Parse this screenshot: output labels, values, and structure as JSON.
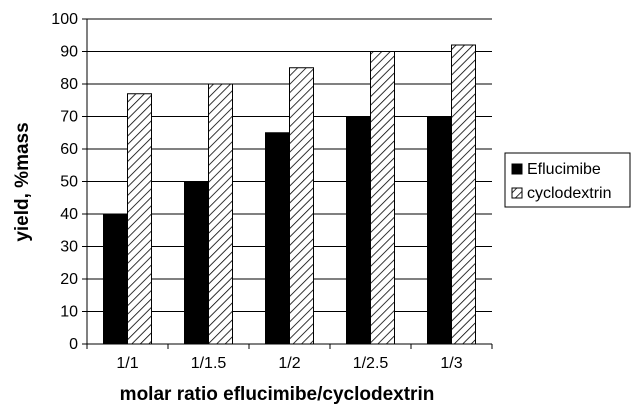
{
  "chart_data": {
    "type": "bar",
    "categories": [
      "1/1",
      "1/1.5",
      "1/2",
      "1/2.5",
      "1/3"
    ],
    "series": [
      {
        "name": "Eflucimibe",
        "values": [
          40,
          50,
          65,
          70,
          70
        ],
        "fill": "solid",
        "color": "#000000"
      },
      {
        "name": "cyclodextrin",
        "values": [
          77,
          80,
          85,
          90,
          92
        ],
        "fill": "hatched",
        "color": "#000000"
      }
    ],
    "title": "",
    "xlabel": "molar ratio eflucimibe/cyclodextrin",
    "ylabel": "yield, %mass",
    "ylim": [
      0,
      100
    ],
    "yticks": [
      0,
      10,
      20,
      30,
      40,
      50,
      60,
      70,
      80,
      90,
      100
    ],
    "grid": "horizontal",
    "legend_position": "right"
  }
}
